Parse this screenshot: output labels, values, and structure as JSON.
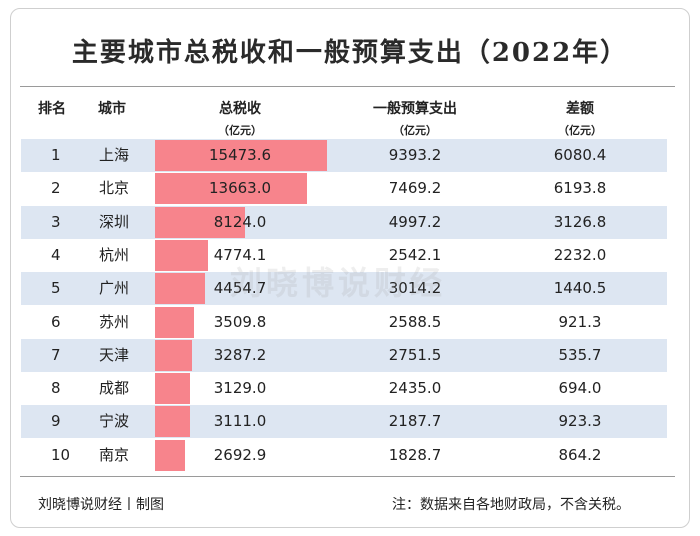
{
  "title": "主要城市总税收和一般预算支出（2022年）",
  "watermark": "刘晓博说财经",
  "header": {
    "rank": "排名",
    "city": "城市",
    "tax": "总税收",
    "tax_unit": "（亿元）",
    "spend": "一般预算支出",
    "spend_unit": "（亿元）",
    "diff": "差额",
    "diff_unit": "（亿元）"
  },
  "footer": {
    "source": "刘晓博说财经丨制图",
    "note": "注：数据来自各地财政局，不含关税。"
  },
  "colors": {
    "bar": "#f7848c",
    "band": "#dde6f2"
  },
  "chart_data": {
    "type": "table",
    "columns": [
      "排名",
      "城市",
      "总税收（亿元）",
      "一般预算支出（亿元）",
      "差额（亿元）"
    ],
    "rows": [
      {
        "rank": "1",
        "city": "上海",
        "tax": "15473.6",
        "spend": "9393.2",
        "diff": "6080.4"
      },
      {
        "rank": "2",
        "city": "北京",
        "tax": "13663.0",
        "spend": "7469.2",
        "diff": "6193.8"
      },
      {
        "rank": "3",
        "city": "深圳",
        "tax": "8124.0",
        "spend": "4997.2",
        "diff": "3126.8"
      },
      {
        "rank": "4",
        "city": "杭州",
        "tax": "4774.1",
        "spend": "2542.1",
        "diff": "2232.0"
      },
      {
        "rank": "5",
        "city": "广州",
        "tax": "4454.7",
        "spend": "3014.2",
        "diff": "1440.5"
      },
      {
        "rank": "6",
        "city": "苏州",
        "tax": "3509.8",
        "spend": "2588.5",
        "diff": "921.3"
      },
      {
        "rank": "7",
        "city": "天津",
        "tax": "3287.2",
        "spend": "2751.5",
        "diff": "535.7"
      },
      {
        "rank": "8",
        "city": "成都",
        "tax": "3129.0",
        "spend": "2435.0",
        "diff": "694.0"
      },
      {
        "rank": "9",
        "city": "宁波",
        "tax": "3111.0",
        "spend": "2187.7",
        "diff": "923.3"
      },
      {
        "rank": "10",
        "city": "南京",
        "tax": "2692.9",
        "spend": "1828.7",
        "diff": "864.2"
      }
    ],
    "bar_column": "tax",
    "bar_max": 15473.6
  }
}
